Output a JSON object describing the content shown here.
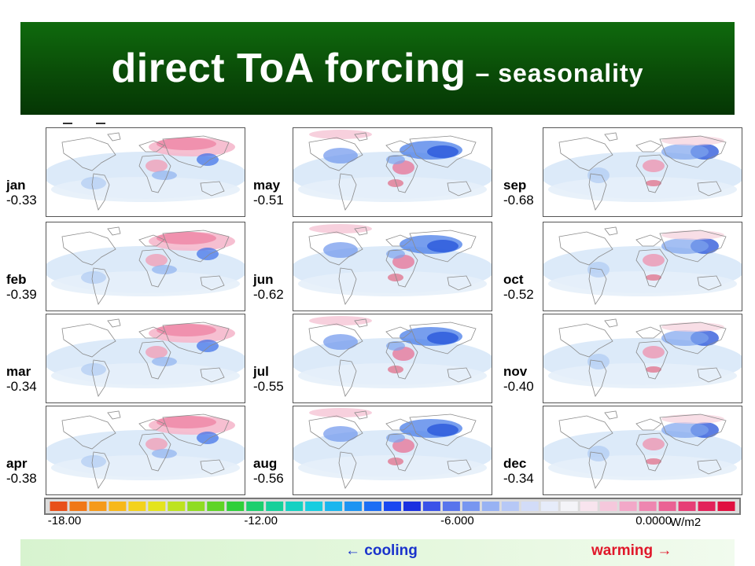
{
  "header": {
    "title_main": "direct ToA forcing",
    "title_sub": "– seasonality"
  },
  "chart_data": {
    "type": "heatmap",
    "title": "direct ToA forcing – seasonality",
    "panels": [
      {
        "month": "jan",
        "value": "-0.33"
      },
      {
        "month": "feb",
        "value": "-0.39"
      },
      {
        "month": "mar",
        "value": "-0.34"
      },
      {
        "month": "apr",
        "value": "-0.38"
      },
      {
        "month": "may",
        "value": "-0.51"
      },
      {
        "month": "jun",
        "value": "-0.62"
      },
      {
        "month": "jul",
        "value": "-0.55"
      },
      {
        "month": "aug",
        "value": "-0.56"
      },
      {
        "month": "sep",
        "value": "-0.68"
      },
      {
        "month": "oct",
        "value": "-0.52"
      },
      {
        "month": "nov",
        "value": "-0.40"
      },
      {
        "month": "dec",
        "value": "-0.34"
      }
    ],
    "colorbar": {
      "range": [
        -18,
        3
      ],
      "tick_labels": [
        "-18.00",
        "-12.00",
        "-6.000",
        "0.0000"
      ],
      "tick_values": [
        -18,
        -12,
        -6,
        0
      ],
      "unit": "W/m2",
      "colors": [
        "#e8501a",
        "#f07818",
        "#f59a1a",
        "#f7b81a",
        "#f3d21c",
        "#e4e41e",
        "#bde320",
        "#8fdc22",
        "#5fd426",
        "#2fcf3a",
        "#1ccf6e",
        "#17d09a",
        "#15d1c2",
        "#18cde0",
        "#1ab6ee",
        "#1c94f2",
        "#1c6ef4",
        "#1a48f0",
        "#1a30e0",
        "#3a52e8",
        "#5874ec",
        "#7896f0",
        "#98b2f3",
        "#b6c8f6",
        "#d2dcf8",
        "#e6ecfa",
        "#f4f4f8",
        "#f8e4ee",
        "#f5c8dc",
        "#f2a8c8",
        "#ee86b0",
        "#ea6294",
        "#e63e76",
        "#e2225a",
        "#e01040"
      ]
    }
  },
  "footer": {
    "cooling_label": "← cooling",
    "warming_label": "warming →"
  }
}
